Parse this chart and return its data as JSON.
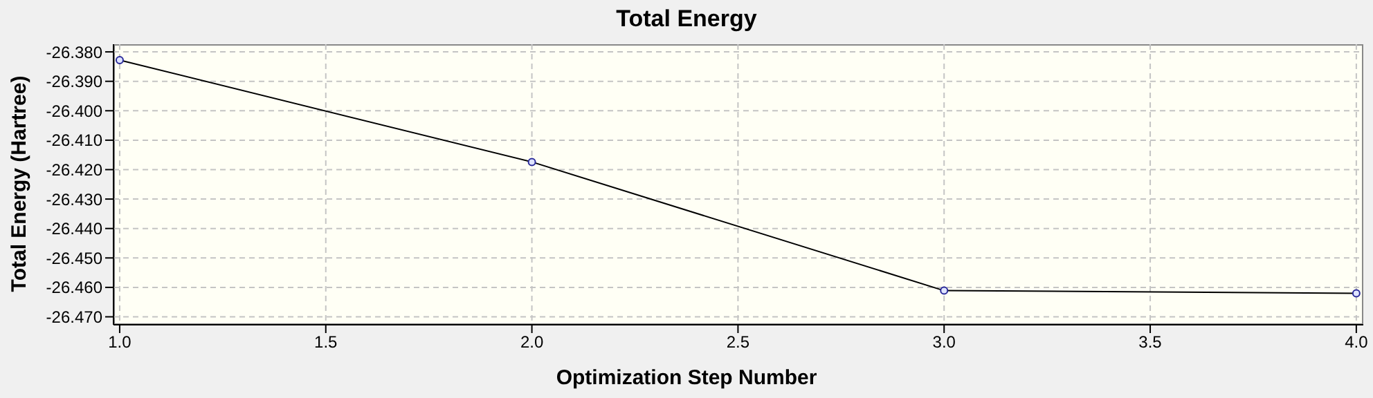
{
  "chart_data": {
    "type": "line",
    "title": "Total Energy",
    "xlabel": "Optimization Step Number",
    "ylabel": "Total Energy (Hartree)",
    "x": [
      1,
      2,
      3,
      4
    ],
    "series": [
      {
        "color": "#000000",
        "values": [
          -26.3828,
          -26.4174,
          -26.4611,
          -26.462
        ]
      }
    ],
    "xlim": [
      0.985,
      4.017
    ],
    "xticks": [
      {
        "value": 1,
        "label": "1.0"
      },
      {
        "value": 1.5,
        "label": "1.5"
      },
      {
        "value": 2,
        "label": "2.0"
      },
      {
        "value": 2.5,
        "label": "2.5"
      },
      {
        "value": 3,
        "label": "3.0"
      },
      {
        "value": 3.5,
        "label": "3.5"
      },
      {
        "value": 4,
        "label": "4.0"
      }
    ],
    "ylim": [
      -26.4727,
      -26.3774
    ],
    "yticks": [
      {
        "value": -26.38,
        "label": "-26.380"
      },
      {
        "value": -26.39,
        "label": "-26.390"
      },
      {
        "value": -26.4,
        "label": "-26.400"
      },
      {
        "value": -26.41,
        "label": "-26.410"
      },
      {
        "value": -26.42,
        "label": "-26.420"
      },
      {
        "value": -26.43,
        "label": "-26.430"
      },
      {
        "value": -26.44,
        "label": "-26.440"
      },
      {
        "value": -26.45,
        "label": "-26.450"
      },
      {
        "value": -26.46,
        "label": "-26.460"
      },
      {
        "value": -26.47,
        "label": "-26.470"
      }
    ],
    "grid": true,
    "marker": "circle",
    "line_style": "solid"
  }
}
